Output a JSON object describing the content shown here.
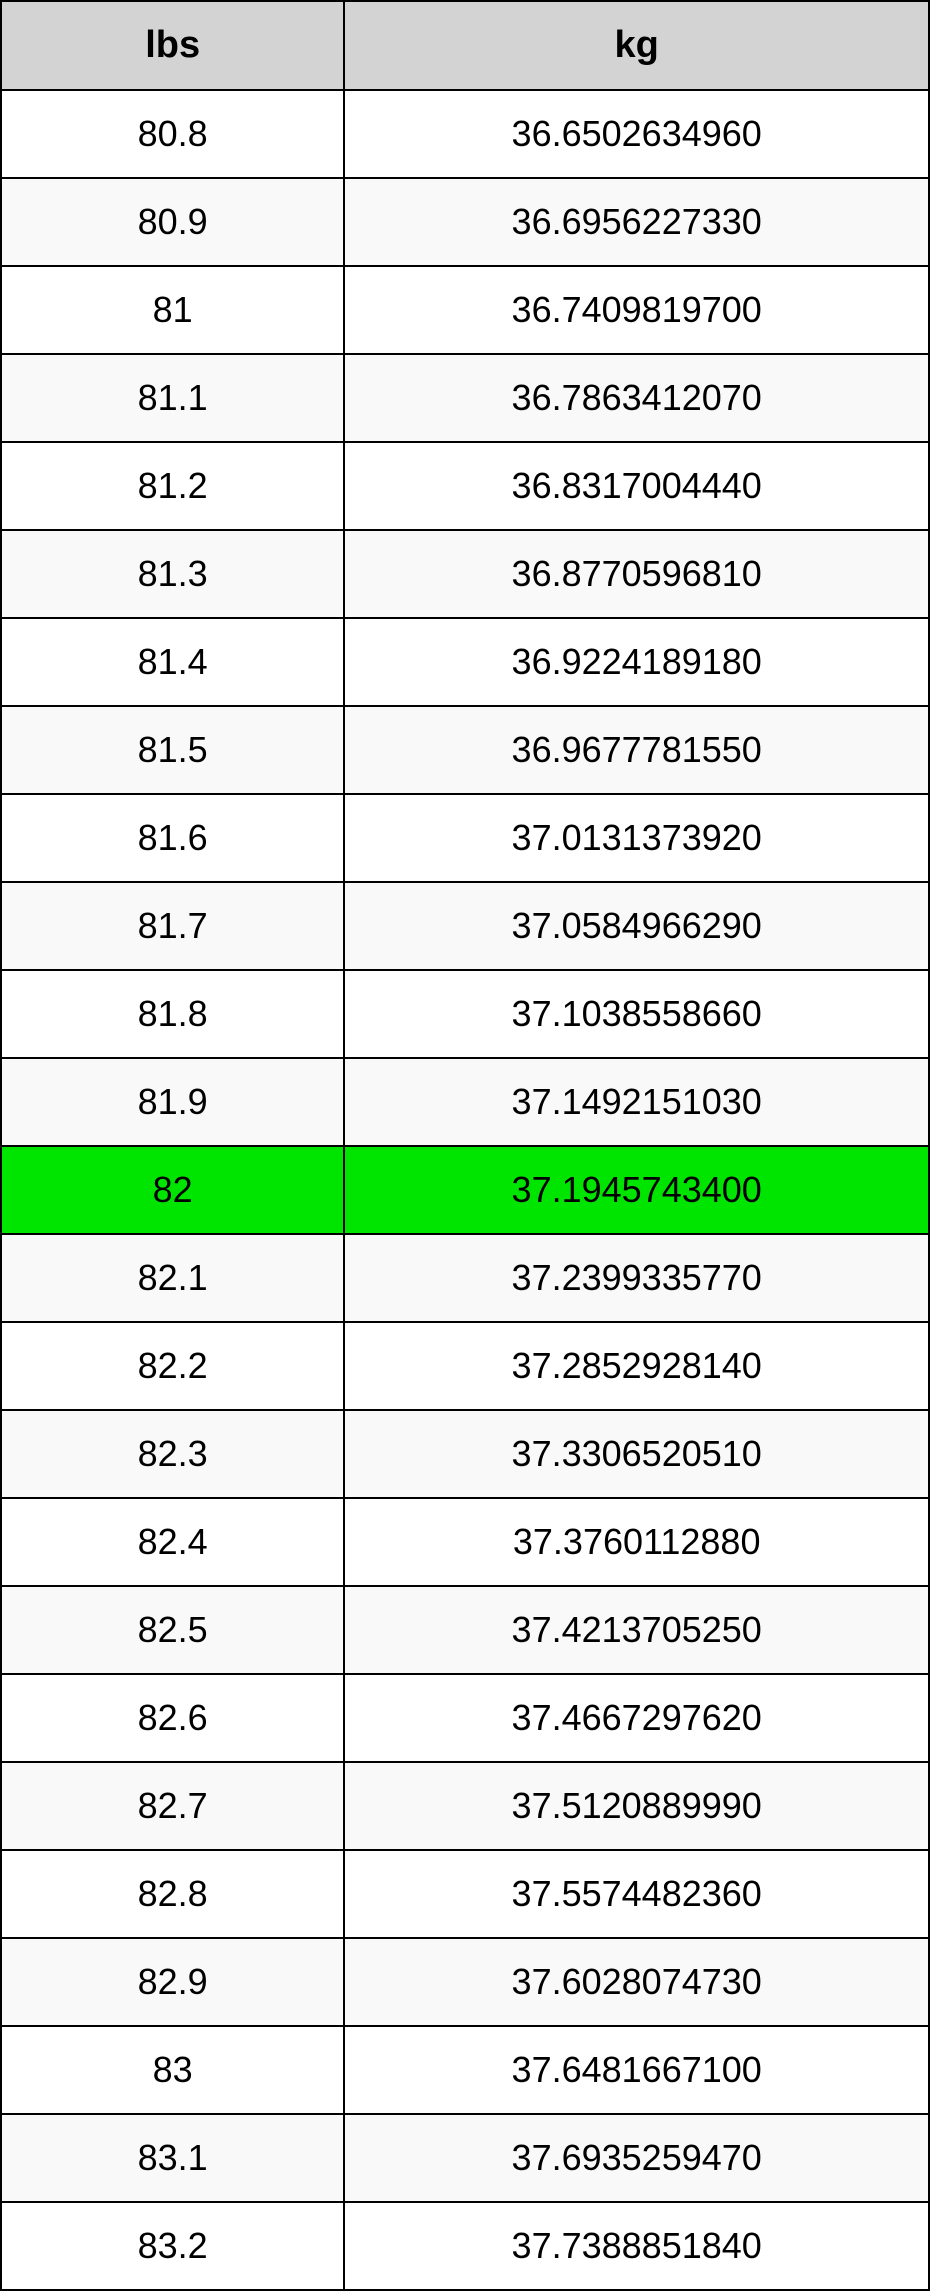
{
  "table": {
    "type": "table",
    "header_background": "#d3d3d3",
    "row_background_even": "#ffffff",
    "row_background_odd": "#f9f9f9",
    "highlight_row_index": 12,
    "highlight_background": "#00e500",
    "border_color": "#000000",
    "header_fontsize": 38,
    "cell_fontsize": 36,
    "columns": [
      {
        "label": "lbs",
        "width_pct": 37,
        "align": "center"
      },
      {
        "label": "kg",
        "width_pct": 63,
        "align": "center"
      }
    ],
    "rows": [
      {
        "lbs": "80.8",
        "kg": "36.6502634960"
      },
      {
        "lbs": "80.9",
        "kg": "36.6956227330"
      },
      {
        "lbs": "81",
        "kg": "36.7409819700"
      },
      {
        "lbs": "81.1",
        "kg": "36.7863412070"
      },
      {
        "lbs": "81.2",
        "kg": "36.8317004440"
      },
      {
        "lbs": "81.3",
        "kg": "36.8770596810"
      },
      {
        "lbs": "81.4",
        "kg": "36.9224189180"
      },
      {
        "lbs": "81.5",
        "kg": "36.9677781550"
      },
      {
        "lbs": "81.6",
        "kg": "37.0131373920"
      },
      {
        "lbs": "81.7",
        "kg": "37.0584966290"
      },
      {
        "lbs": "81.8",
        "kg": "37.1038558660"
      },
      {
        "lbs": "81.9",
        "kg": "37.1492151030"
      },
      {
        "lbs": "82",
        "kg": "37.1945743400"
      },
      {
        "lbs": "82.1",
        "kg": "37.2399335770"
      },
      {
        "lbs": "82.2",
        "kg": "37.2852928140"
      },
      {
        "lbs": "82.3",
        "kg": "37.3306520510"
      },
      {
        "lbs": "82.4",
        "kg": "37.3760112880"
      },
      {
        "lbs": "82.5",
        "kg": "37.4213705250"
      },
      {
        "lbs": "82.6",
        "kg": "37.4667297620"
      },
      {
        "lbs": "82.7",
        "kg": "37.5120889990"
      },
      {
        "lbs": "82.8",
        "kg": "37.5574482360"
      },
      {
        "lbs": "82.9",
        "kg": "37.6028074730"
      },
      {
        "lbs": "83",
        "kg": "37.6481667100"
      },
      {
        "lbs": "83.1",
        "kg": "37.6935259470"
      },
      {
        "lbs": "83.2",
        "kg": "37.7388851840"
      }
    ]
  }
}
